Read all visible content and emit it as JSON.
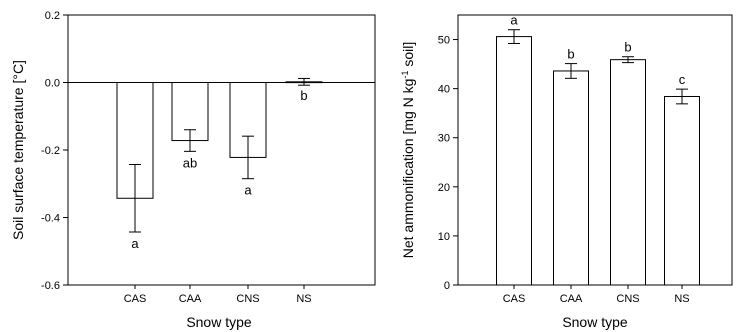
{
  "chart_data": [
    {
      "type": "bar",
      "title": "",
      "xlabel": "Snow type",
      "ylabel": "Soil surface temperature [°C]",
      "categories": [
        "CAS",
        "CAA",
        "CNS",
        "NS"
      ],
      "values": [
        -0.343,
        -0.172,
        -0.222,
        0.002
      ],
      "errors": [
        0.1,
        0.032,
        0.063,
        0.01
      ],
      "significance": [
        "a",
        "ab",
        "a",
        "b"
      ],
      "ylim": [
        -0.6,
        0.2
      ],
      "yticks": [
        "0.2",
        "0.0",
        "-0.2",
        "-0.4",
        "-0.6"
      ],
      "zero_line": true,
      "grid": false,
      "bar_fill": "#ffffff",
      "bar_stroke": "#000000"
    },
    {
      "type": "bar",
      "title": "",
      "xlabel": "Snow type",
      "ylabel_parts": [
        "Net ammonification [mg N kg",
        "-1",
        " soil]"
      ],
      "categories": [
        "CAS",
        "CAA",
        "CNS",
        "NS"
      ],
      "values": [
        50.6,
        43.6,
        45.9,
        38.4
      ],
      "errors": [
        1.4,
        1.5,
        0.6,
        1.5
      ],
      "significance": [
        "a",
        "b",
        "b",
        "c"
      ],
      "ylim": [
        0,
        55
      ],
      "yticks": [
        "0",
        "10",
        "20",
        "30",
        "40",
        "50"
      ],
      "grid": false,
      "bar_fill": "#ffffff",
      "bar_stroke": "#000000"
    }
  ]
}
